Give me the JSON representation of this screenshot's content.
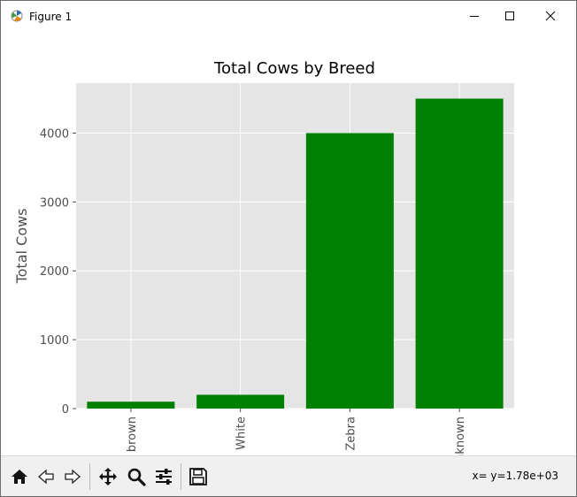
{
  "window": {
    "title": "Figure 1"
  },
  "toolbar": {
    "buttons": [
      {
        "name": "home-button",
        "icon": "home-icon"
      },
      {
        "name": "back-button",
        "icon": "back-arrow-icon"
      },
      {
        "name": "forward-button",
        "icon": "forward-arrow-icon"
      },
      {
        "name": "pan-button",
        "icon": "move-icon"
      },
      {
        "name": "zoom-button",
        "icon": "magnifier-icon"
      },
      {
        "name": "configure-subplots-button",
        "icon": "sliders-icon"
      },
      {
        "name": "save-button",
        "icon": "floppy-disk-icon"
      }
    ],
    "coordinates": "x= y=1.78e+03"
  },
  "colors": {
    "bar": "#008000",
    "plot_bg": "#e5e5e5",
    "grid": "#ffffff",
    "text": "#4d4d4d"
  },
  "chart_data": {
    "type": "bar",
    "title": "Total Cows by Breed",
    "xlabel": "",
    "ylabel": "Total Cows",
    "categories": [
      "brown",
      "White",
      "Zebra",
      "nknown"
    ],
    "values": [
      100,
      200,
      4000,
      4500
    ],
    "ylim": [
      0,
      4725
    ],
    "yticks": [
      0,
      1000,
      2000,
      3000,
      4000
    ],
    "grid": true
  }
}
